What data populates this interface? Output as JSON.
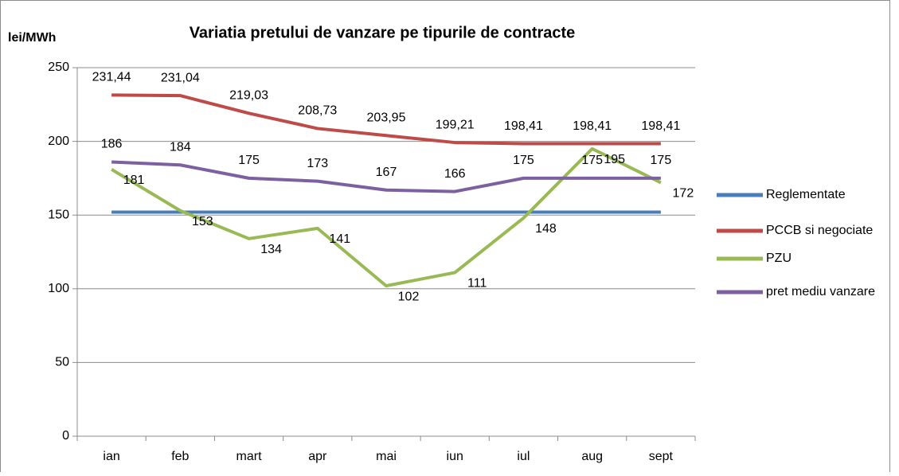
{
  "chart_data": {
    "type": "line",
    "title": "Variatia pretului de vanzare pe tipurile de contracte",
    "y_label": "lei/MWh",
    "categories": [
      "ian",
      "feb",
      "mart",
      "apr",
      "mai",
      "iun",
      "iul",
      "aug",
      "sept"
    ],
    "series": [
      {
        "name": "Reglementate",
        "color": "#4a7ebb",
        "values": [
          152,
          152,
          152,
          152,
          152,
          152,
          152,
          152,
          152
        ]
      },
      {
        "name": "PCCB si negociate",
        "color": "#be4b48",
        "values": [
          231.44,
          231.04,
          219.03,
          208.73,
          203.95,
          199.21,
          198.41,
          198.41,
          198.41
        ],
        "value_labels": [
          "231,44",
          "231,04",
          "219,03",
          "208,73",
          "203,95",
          "199,21",
          "198,41",
          "198,41",
          "198,41"
        ]
      },
      {
        "name": "PZU",
        "color": "#98b954",
        "values": [
          181,
          153,
          134,
          141,
          102,
          111,
          148,
          195,
          172
        ]
      },
      {
        "name": "pret mediu vanzare",
        "color": "#7d60a0",
        "values": [
          186,
          184,
          175,
          173,
          167,
          166,
          175,
          175,
          175
        ]
      }
    ],
    "ylim": [
      0,
      250
    ],
    "yticks": [
      0,
      50,
      100,
      150,
      200,
      250
    ],
    "grid": true,
    "legend": "right"
  }
}
